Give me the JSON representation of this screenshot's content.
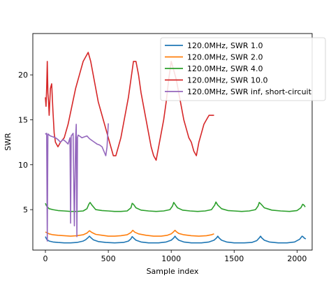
{
  "chart_data": {
    "type": "line",
    "title": "",
    "xlabel": "Sample index",
    "ylabel": "SWR",
    "xlim": [
      -100,
      2120
    ],
    "ylim": [
      0.5,
      24.6
    ],
    "x_ticks": [
      0,
      500,
      1000,
      1500,
      2000
    ],
    "y_ticks": [
      5,
      10,
      15,
      20
    ],
    "x_tick_labels": [
      "0",
      "500",
      "1000",
      "1500",
      "2000"
    ],
    "y_tick_labels": [
      "5",
      "10",
      "15",
      "20"
    ],
    "grid": false,
    "legend_position": "upper right",
    "series": [
      {
        "name": "120.0MHz, SWR 1.0",
        "color": "#1f77b4",
        "x": [
          0,
          10,
          30,
          60,
          100,
          150,
          200,
          250,
          300,
          320,
          340,
          350,
          360,
          380,
          420,
          480,
          550,
          620,
          660,
          680,
          690,
          700,
          720,
          760,
          820,
          900,
          960,
          1000,
          1020,
          1030,
          1040,
          1060,
          1100,
          1160,
          1240,
          1300,
          1340,
          1360,
          1370,
          1380,
          1400,
          1440,
          1500,
          1580,
          1640,
          1680,
          1700,
          1710,
          1720,
          1740,
          1780,
          1850,
          1920,
          1980,
          2020,
          2040,
          2050,
          2060,
          2070
        ],
        "y": [
          2.0,
          1.7,
          1.5,
          1.4,
          1.35,
          1.3,
          1.3,
          1.35,
          1.5,
          1.65,
          1.9,
          2.05,
          1.9,
          1.65,
          1.45,
          1.35,
          1.3,
          1.35,
          1.5,
          1.75,
          2.0,
          1.85,
          1.6,
          1.4,
          1.3,
          1.3,
          1.4,
          1.6,
          1.85,
          2.05,
          1.85,
          1.6,
          1.4,
          1.3,
          1.3,
          1.4,
          1.6,
          1.85,
          2.05,
          1.85,
          1.6,
          1.4,
          1.3,
          1.3,
          1.35,
          1.55,
          1.85,
          2.05,
          1.85,
          1.6,
          1.4,
          1.3,
          1.3,
          1.4,
          1.7,
          2.05,
          1.95,
          1.8,
          1.75
        ]
      },
      {
        "name": "120.0MHz, SWR 2.0",
        "color": "#ff7f0e",
        "x": [
          0,
          10,
          30,
          60,
          100,
          150,
          200,
          250,
          300,
          330,
          350,
          370,
          400,
          450,
          500,
          550,
          600,
          650,
          680,
          695,
          710,
          740,
          800,
          860,
          920,
          970,
          1000,
          1020,
          1030,
          1040,
          1060,
          1100,
          1160,
          1220,
          1280,
          1320,
          1340
        ],
        "y": [
          2.5,
          2.45,
          2.3,
          2.2,
          2.15,
          2.1,
          2.05,
          2.1,
          2.2,
          2.4,
          2.65,
          2.45,
          2.25,
          2.15,
          2.05,
          2.05,
          2.1,
          2.2,
          2.45,
          2.7,
          2.5,
          2.3,
          2.15,
          2.05,
          2.05,
          2.15,
          2.3,
          2.55,
          2.7,
          2.55,
          2.35,
          2.2,
          2.1,
          2.05,
          2.1,
          2.2,
          2.3
        ]
      },
      {
        "name": "120.0MHz, SWR 4.0",
        "color": "#2ca02c",
        "x": [
          0,
          10,
          30,
          60,
          100,
          150,
          200,
          250,
          300,
          330,
          345,
          355,
          370,
          400,
          450,
          500,
          550,
          600,
          650,
          680,
          690,
          700,
          720,
          760,
          820,
          880,
          940,
          990,
          1010,
          1020,
          1030,
          1050,
          1090,
          1150,
          1210,
          1270,
          1320,
          1345,
          1355,
          1370,
          1400,
          1450,
          1500,
          1560,
          1620,
          1670,
          1690,
          1700,
          1715,
          1740,
          1800,
          1870,
          1940,
          2000,
          2030,
          2045,
          2055,
          2065
        ],
        "y": [
          5.7,
          5.4,
          5.1,
          5.0,
          4.9,
          4.85,
          4.8,
          4.8,
          4.85,
          5.1,
          5.6,
          5.8,
          5.5,
          5.0,
          4.9,
          4.85,
          4.8,
          4.8,
          4.85,
          5.2,
          5.7,
          5.6,
          5.2,
          4.95,
          4.85,
          4.8,
          4.85,
          5.0,
          5.4,
          5.8,
          5.6,
          5.2,
          4.95,
          4.85,
          4.8,
          4.85,
          5.0,
          5.5,
          5.85,
          5.5,
          5.1,
          4.9,
          4.85,
          4.8,
          4.85,
          5.0,
          5.4,
          5.8,
          5.6,
          5.2,
          4.95,
          4.85,
          4.8,
          4.9,
          5.2,
          5.6,
          5.5,
          5.3
        ]
      },
      {
        "name": "120.0MHz, SWR 10.0",
        "color": "#d62728",
        "x": [
          0,
          5,
          10,
          15,
          20,
          25,
          30,
          40,
          50,
          60,
          70,
          80,
          100,
          120,
          150,
          180,
          210,
          240,
          270,
          300,
          320,
          340,
          360,
          380,
          400,
          420,
          440,
          460,
          480,
          500,
          520,
          540,
          560,
          580,
          600,
          620,
          640,
          660,
          680,
          700,
          720,
          740,
          760,
          780,
          800,
          820,
          840,
          860,
          880,
          900,
          920,
          940,
          960,
          980,
          1000,
          1020,
          1040,
          1060,
          1080,
          1100,
          1120,
          1140,
          1160,
          1180,
          1200,
          1220,
          1240,
          1260,
          1280,
          1300,
          1320,
          1340
        ],
        "y": [
          17.5,
          16.5,
          18.5,
          21.5,
          18.0,
          17.0,
          15.5,
          18.5,
          19.0,
          16.0,
          13.5,
          12.5,
          12.0,
          12.5,
          13.0,
          14.5,
          16.5,
          18.5,
          20.0,
          21.5,
          22.0,
          22.5,
          21.5,
          20.0,
          18.5,
          17.0,
          16.0,
          15.0,
          14.0,
          13.0,
          12.0,
          11.0,
          11.0,
          12.0,
          13.0,
          14.5,
          16.0,
          17.5,
          19.5,
          21.5,
          21.5,
          20.0,
          18.0,
          16.5,
          15.0,
          13.5,
          12.0,
          11.0,
          10.5,
          12.0,
          13.5,
          15.0,
          17.0,
          19.5,
          21.5,
          20.5,
          19.5,
          18.0,
          16.5,
          15.0,
          14.0,
          13.0,
          12.5,
          11.5,
          11.0,
          12.5,
          13.5,
          14.5,
          15.0,
          15.5,
          15.5,
          15.5
        ]
      },
      {
        "name": "120.0MHz, SWR inf, short-circuit",
        "color": "#9467bd",
        "x": [
          0,
          5,
          10,
          15,
          20,
          25,
          30,
          40,
          60,
          80,
          100,
          120,
          140,
          160,
          180,
          195,
          200,
          205,
          210,
          220,
          230,
          240,
          245,
          250,
          255,
          260,
          270,
          290,
          310,
          330,
          350,
          370,
          390,
          410,
          430,
          450,
          465,
          480,
          490,
          500
        ],
        "y": [
          13.5,
          13.4,
          13.5,
          1.5,
          13.4,
          13.4,
          13.3,
          13.2,
          13.1,
          13.0,
          12.8,
          12.5,
          12.8,
          12.6,
          12.3,
          13.0,
          3.5,
          13.2,
          13.3,
          13.5,
          3.2,
          13.0,
          14.5,
          2.0,
          13.0,
          13.3,
          13.2,
          13.0,
          13.1,
          13.2,
          12.9,
          12.7,
          12.5,
          12.3,
          12.2,
          12.0,
          11.5,
          11.0,
          12.0,
          14.6
        ]
      }
    ]
  }
}
